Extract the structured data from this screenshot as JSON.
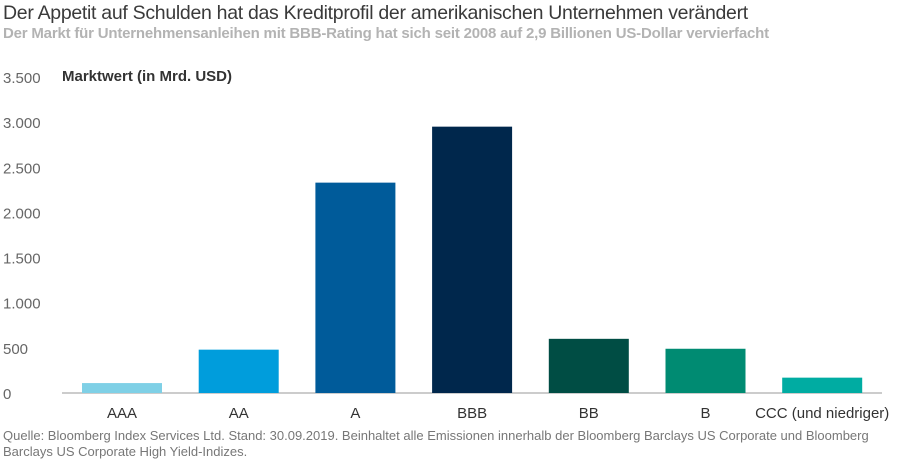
{
  "chart_data": {
    "type": "bar",
    "title": "Der Appetit auf Schulden hat das Kreditprofil der amerikanischen Unternehmen verändert",
    "subtitle": "Der Markt für Unternehmensanleihen mit BBB-Rating hat sich seit 2008 auf 2,9 Billionen US-Dollar vervierfacht",
    "ylabel": "Marktwert (in Mrd. USD)",
    "xlabel": "",
    "categories": [
      "AAA",
      "AA",
      "A",
      "BBB",
      "BB",
      "B",
      "CCC (und niedriger)"
    ],
    "values": [
      110,
      480,
      2330,
      2950,
      600,
      490,
      170
    ],
    "colors": [
      "#7fd0e6",
      "#009ddc",
      "#005b9a",
      "#00274c",
      "#004d44",
      "#008b72",
      "#00aca2"
    ],
    "ylim": [
      0,
      3500
    ],
    "yticks": [
      0,
      500,
      1000,
      1500,
      2000,
      2500,
      3000,
      3500
    ],
    "ytick_labels": [
      "0",
      "500",
      "1.000",
      "1.500",
      "2.000",
      "2.500",
      "3.000",
      "3.500"
    ],
    "grid": false,
    "legend": "none"
  },
  "source": "Quelle: Bloomberg Index Services Ltd. Stand: 30.09.2019. Beinhaltet alle Emissionen innerhalb der Bloomberg Barclays US Corporate und Bloomberg Barclays US Corporate High Yield-Indizes."
}
